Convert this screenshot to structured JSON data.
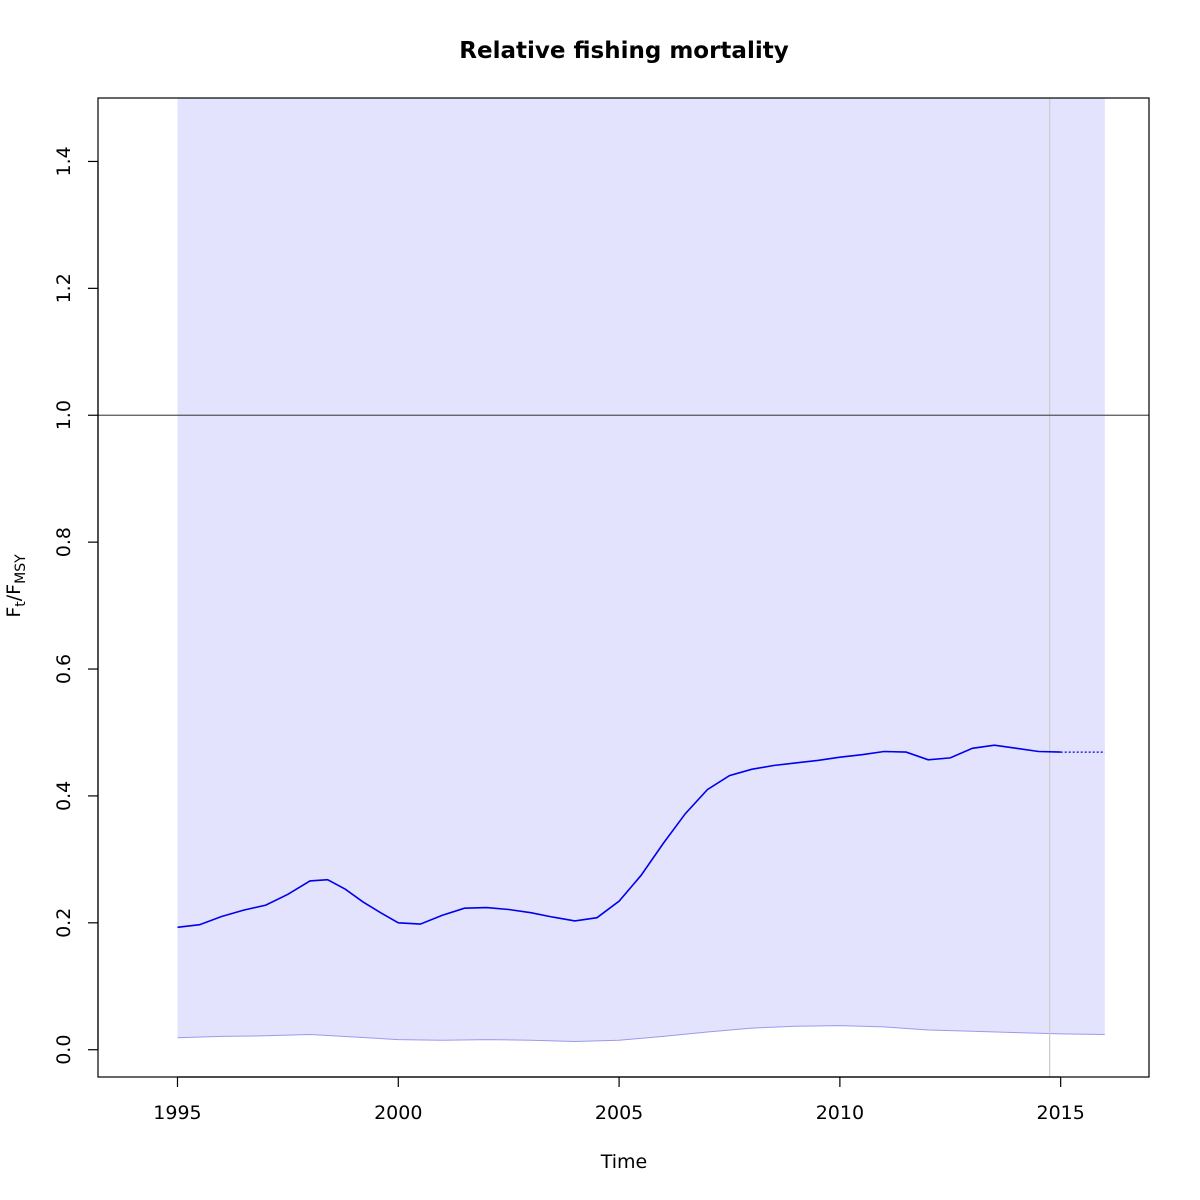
{
  "chart_data": {
    "type": "line",
    "title": "Relative fishing mortality",
    "xlabel": "Time",
    "ylabel": {
      "main": "F",
      "sub1": "t",
      "sep": "/F",
      "sub2": "MSY"
    },
    "xlim": [
      1993.2,
      2017.0
    ],
    "ylim": [
      -0.043,
      1.5
    ],
    "x_ticks": [
      1995,
      2000,
      2005,
      2010,
      2015
    ],
    "y_ticks": [
      0.0,
      0.2,
      0.4,
      0.6,
      0.8,
      1.0,
      1.2,
      1.4
    ],
    "y_tick_labels": [
      "0.0",
      "0.2",
      "0.4",
      "0.6",
      "0.8",
      "1.0",
      "1.2",
      "1.4"
    ],
    "reference_line": {
      "y": 1.0,
      "color": "#555555"
    },
    "vertical_line": {
      "x": 2014.75,
      "color": "#cccccc"
    },
    "confidence_band": {
      "x_start": 1995,
      "x_end": 2016,
      "upper": 1.5,
      "color": "#e3e3fd"
    },
    "series": [
      {
        "role": "estimate",
        "color": "#0000ee",
        "x": [
          1995.0,
          1995.5,
          1996.0,
          1996.5,
          1997.0,
          1997.5,
          1998.0,
          1998.4,
          1998.8,
          1999.2,
          1999.6,
          2000.0,
          2000.5,
          2001.0,
          2001.5,
          2002.0,
          2002.5,
          2003.0,
          2003.5,
          2004.0,
          2004.5,
          2005.0,
          2005.5,
          2006.0,
          2006.5,
          2007.0,
          2007.5,
          2008.0,
          2008.5,
          2009.0,
          2009.5,
          2010.0,
          2010.5,
          2011.0,
          2011.5,
          2012.0,
          2012.5,
          2013.0,
          2013.5,
          2014.0,
          2014.5,
          2015.0
        ],
        "y": [
          0.193,
          0.197,
          0.21,
          0.22,
          0.228,
          0.245,
          0.266,
          0.268,
          0.253,
          0.233,
          0.216,
          0.2,
          0.198,
          0.212,
          0.223,
          0.224,
          0.221,
          0.216,
          0.209,
          0.203,
          0.208,
          0.234,
          0.275,
          0.325,
          0.372,
          0.41,
          0.432,
          0.442,
          0.448,
          0.452,
          0.456,
          0.461,
          0.465,
          0.47,
          0.469,
          0.457,
          0.46,
          0.475,
          0.48,
          0.475,
          0.47,
          0.469
        ]
      },
      {
        "role": "projection",
        "color": "#0000ee",
        "x": [
          2015.0,
          2016.0
        ],
        "y": [
          0.469,
          0.469
        ]
      },
      {
        "role": "lower-bound",
        "color": "#9a9aee",
        "x": [
          1995.0,
          1996.0,
          1997.0,
          1998.0,
          1999.0,
          2000.0,
          2001.0,
          2002.0,
          2003.0,
          2004.0,
          2005.0,
          2006.0,
          2007.0,
          2008.0,
          2009.0,
          2010.0,
          2011.0,
          2012.0,
          2013.0,
          2014.0,
          2015.0,
          2016.0
        ],
        "y": [
          0.019,
          0.021,
          0.022,
          0.024,
          0.02,
          0.016,
          0.015,
          0.016,
          0.015,
          0.013,
          0.015,
          0.021,
          0.028,
          0.034,
          0.037,
          0.038,
          0.036,
          0.031,
          0.029,
          0.027,
          0.025,
          0.024
        ]
      }
    ],
    "grid": false,
    "legend": "none"
  }
}
